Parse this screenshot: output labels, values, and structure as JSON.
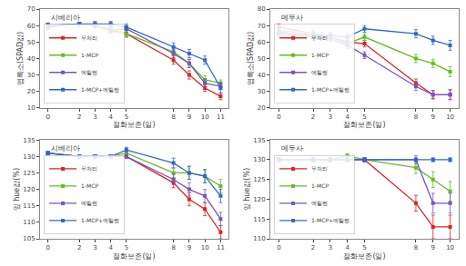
{
  "chart_data": [
    {
      "type": "line",
      "title": "시베리아",
      "x_label": "절화보존(일)",
      "y_label": "엽록소(SPAD값)",
      "x": [
        0,
        2,
        3,
        4,
        5,
        8,
        9,
        10,
        11
      ],
      "xlim": [
        -0.5,
        11.5
      ],
      "xticks": [
        0,
        2,
        3,
        4,
        5,
        8,
        9,
        10,
        11
      ],
      "ylim": [
        10,
        70
      ],
      "yticks": [
        10,
        20,
        30,
        40,
        50,
        60,
        70
      ],
      "grid": false,
      "legend": "lower left",
      "marker": "square",
      "line_style": "solid",
      "series": [
        {
          "name": "무처리",
          "color": "#dd2222",
          "values": [
            59,
            61,
            60,
            57,
            55,
            39,
            30,
            22,
            17
          ],
          "error": [
            1.5,
            1.0,
            1.5,
            1.5,
            2.0,
            2.5,
            2.5,
            2.0,
            2.0
          ]
        },
        {
          "name": "1-MCP",
          "color": "#66bb22",
          "values": [
            60,
            61,
            60,
            58,
            55,
            44,
            37,
            27,
            25
          ],
          "error": [
            1.5,
            1.0,
            1.5,
            1.5,
            2.0,
            2.5,
            2.5,
            2.5,
            2.0
          ]
        },
        {
          "name": "에틸렌",
          "color": "#7755bb",
          "values": [
            60,
            61,
            60,
            57,
            58,
            43,
            37,
            25,
            23
          ],
          "error": [
            1.5,
            1.0,
            1.5,
            1.5,
            2.0,
            2.5,
            2.5,
            2.5,
            2.0
          ]
        },
        {
          "name": "1-MCP+에틸렌",
          "color": "#3366cc",
          "values": [
            60,
            61,
            61,
            61,
            59,
            47,
            43,
            39,
            22
          ],
          "error": [
            1.5,
            1.0,
            1.5,
            1.5,
            2.0,
            2.5,
            2.5,
            2.5,
            3.0
          ]
        }
      ]
    },
    {
      "type": "line",
      "title": "메두사",
      "x_label": "절화보존(일)",
      "y_label": "엽록소(SPAD값)",
      "x": [
        0,
        2,
        3,
        4,
        5,
        8,
        9,
        10
      ],
      "xlim": [
        -0.5,
        10.5
      ],
      "xticks": [
        0,
        2,
        3,
        4,
        5,
        8,
        9,
        10
      ],
      "ylim": [
        20,
        80
      ],
      "yticks": [
        20,
        30,
        40,
        50,
        60,
        70,
        80
      ],
      "grid": false,
      "legend": "lower left",
      "marker": "square",
      "line_style": "solid",
      "series": [
        {
          "name": "무처리",
          "color": "#dd2222",
          "values": [
            69,
            65,
            63,
            60,
            59,
            35,
            28,
            28
          ],
          "error": [
            2.0,
            2.0,
            2.0,
            2.0,
            2.0,
            2.5,
            2.5,
            3.0
          ]
        },
        {
          "name": "1-MCP",
          "color": "#66bb22",
          "values": [
            67,
            65,
            63,
            59,
            63,
            50,
            47,
            42
          ],
          "error": [
            2.0,
            2.0,
            2.0,
            2.0,
            2.0,
            2.5,
            2.5,
            3.0
          ]
        },
        {
          "name": "에틸렌",
          "color": "#7755bb",
          "values": [
            65,
            63,
            62,
            58,
            52,
            33,
            28,
            28
          ],
          "error": [
            2.0,
            2.0,
            2.0,
            2.0,
            2.0,
            2.5,
            2.5,
            3.0
          ]
        },
        {
          "name": "1-MCP+에틸렌",
          "color": "#3366cc",
          "values": [
            66,
            64,
            64,
            63,
            68,
            65,
            61,
            58
          ],
          "error": [
            2.0,
            2.0,
            2.0,
            2.0,
            2.0,
            2.5,
            2.5,
            3.0
          ]
        }
      ]
    },
    {
      "type": "line",
      "title": "시베리아",
      "x_label": "절화보존(일)",
      "y_label": "잎 hue값(%)",
      "x": [
        0,
        2,
        3,
        4,
        5,
        8,
        9,
        10,
        11
      ],
      "xlim": [
        -0.5,
        11.5
      ],
      "xticks": [
        0,
        2,
        3,
        4,
        5,
        8,
        9,
        10,
        11
      ],
      "ylim": [
        105,
        135
      ],
      "yticks": [
        105,
        110,
        115,
        120,
        125,
        130,
        135
      ],
      "grid": false,
      "legend": "lower left",
      "marker": "square",
      "line_style": "solid",
      "series": [
        {
          "name": "무처리",
          "color": "#dd2222",
          "values": [
            131,
            130,
            130,
            130,
            130,
            122,
            117,
            114,
            107
          ],
          "error": [
            0.5,
            0.5,
            0.5,
            0.5,
            0.5,
            1.5,
            2.0,
            2.0,
            2.0
          ]
        },
        {
          "name": "1-MCP",
          "color": "#66bb22",
          "values": [
            131,
            130,
            130,
            130,
            131,
            125,
            125,
            124,
            121
          ],
          "error": [
            0.5,
            0.5,
            0.5,
            0.5,
            0.5,
            1.5,
            2.0,
            2.0,
            2.0
          ]
        },
        {
          "name": "에틸렌",
          "color": "#7755bb",
          "values": [
            131,
            130,
            130,
            130,
            130,
            123,
            120,
            118,
            111
          ],
          "error": [
            0.5,
            0.5,
            0.5,
            0.5,
            0.5,
            1.5,
            2.0,
            2.0,
            2.0
          ]
        },
        {
          "name": "1-MCP+에틸렌",
          "color": "#3366cc",
          "values": [
            131,
            130,
            130,
            130,
            132,
            128,
            125,
            124,
            118
          ],
          "error": [
            0.5,
            0.5,
            0.5,
            0.5,
            0.8,
            1.5,
            2.0,
            2.0,
            2.0
          ]
        }
      ]
    },
    {
      "type": "line",
      "title": "메두사",
      "x_label": "절화보존(일)",
      "y_label": "잎 hue값(%)",
      "x": [
        0,
        2,
        3,
        4,
        5,
        8,
        9,
        10
      ],
      "xlim": [
        -0.5,
        10.5
      ],
      "xticks": [
        0,
        2,
        3,
        4,
        5,
        8,
        9,
        10
      ],
      "ylim": [
        110,
        135
      ],
      "yticks": [
        110,
        115,
        120,
        125,
        130,
        135
      ],
      "grid": false,
      "legend": "lower left",
      "marker": "square",
      "line_style": "solid",
      "series": [
        {
          "name": "무처리",
          "color": "#dd2222",
          "values": [
            130,
            130,
            130,
            130,
            130,
            119,
            113,
            113
          ],
          "error": [
            0.5,
            0.5,
            0.5,
            0.5,
            0.5,
            2.0,
            3.0,
            3.0
          ]
        },
        {
          "name": "1-MCP",
          "color": "#66bb22",
          "values": [
            130,
            130,
            130,
            131,
            130,
            128,
            125,
            122
          ],
          "error": [
            0.5,
            0.5,
            0.5,
            0.5,
            0.5,
            1.5,
            2.0,
            2.5
          ]
        },
        {
          "name": "에틸렌",
          "color": "#7755bb",
          "values": [
            130,
            130,
            130,
            130,
            130,
            130,
            119,
            119
          ],
          "error": [
            0.5,
            0.5,
            0.5,
            0.5,
            0.5,
            1.0,
            2.5,
            2.5
          ]
        },
        {
          "name": "1-MCP+에틸렌",
          "color": "#3366cc",
          "values": [
            130,
            130,
            130,
            130,
            130,
            130,
            130,
            130
          ],
          "error": [
            0.5,
            0.5,
            0.5,
            0.5,
            0.5,
            0.5,
            0.5,
            0.5
          ]
        }
      ]
    }
  ]
}
